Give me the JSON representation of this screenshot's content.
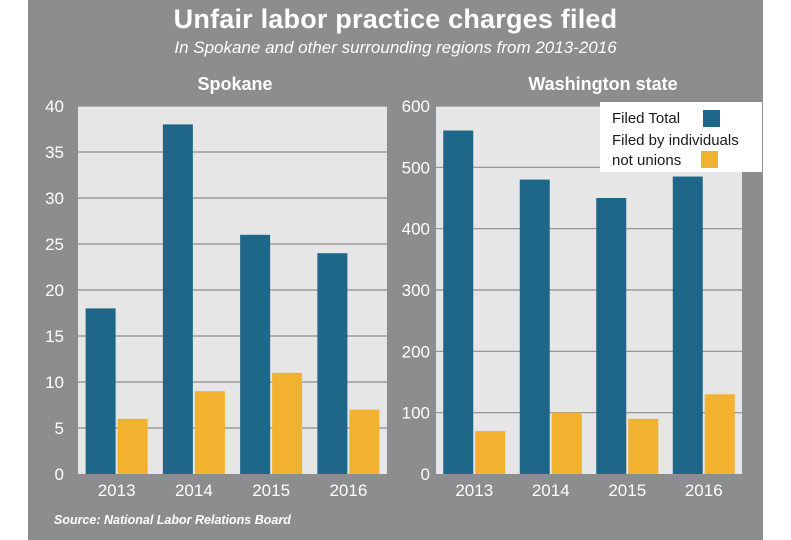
{
  "title": "Unfair labor practice charges filed",
  "subtitle": "In Spokane and other surrounding regions from 2013-2016",
  "source": "Source: National Labor Relations Board",
  "colors": {
    "filed_total": "#1f6788",
    "filed_individuals": "#f2b12e",
    "plot_bg": "#e6e6e6",
    "grid": "#8c8d8f"
  },
  "legend": {
    "filed_total": "Filed Total",
    "filed_individuals_line1": "Filed by individuals",
    "filed_individuals_line2": "not unions"
  },
  "chart_data": [
    {
      "type": "bar",
      "title": "Spokane",
      "categories": [
        "2013",
        "2014",
        "2015",
        "2016"
      ],
      "series": [
        {
          "name": "Filed Total",
          "values": [
            18,
            38,
            26,
            24
          ]
        },
        {
          "name": "Filed by individuals not unions",
          "values": [
            6,
            9,
            11,
            7
          ]
        }
      ],
      "ylim": [
        0,
        40
      ],
      "yticks": [
        0,
        5,
        10,
        15,
        20,
        25,
        30,
        35,
        40
      ],
      "grid": true
    },
    {
      "type": "bar",
      "title": "Washington state",
      "categories": [
        "2013",
        "2014",
        "2015",
        "2016"
      ],
      "series": [
        {
          "name": "Filed Total",
          "values": [
            560,
            480,
            450,
            485
          ]
        },
        {
          "name": "Filed by individuals not unions",
          "values": [
            70,
            100,
            90,
            130
          ]
        }
      ],
      "ylim": [
        0,
        600
      ],
      "yticks": [
        0,
        100,
        200,
        300,
        400,
        500,
        600
      ],
      "grid": true,
      "legend_position": "top-right"
    }
  ]
}
